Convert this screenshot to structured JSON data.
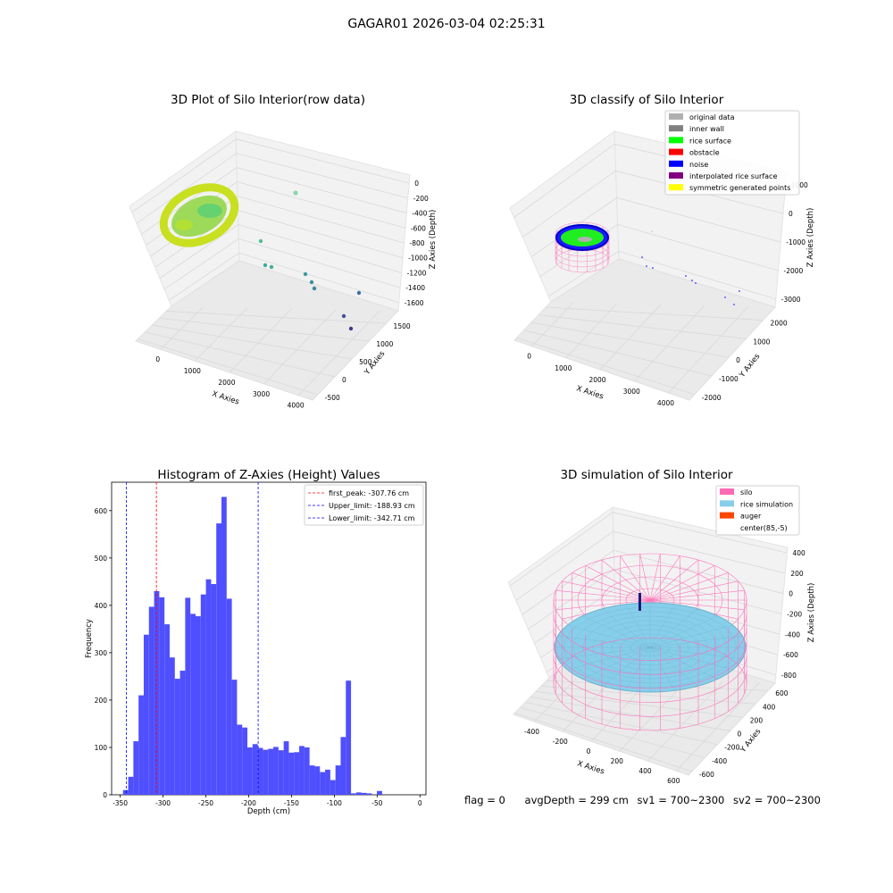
{
  "suptitle": "GAGAR01 2026-03-04 02:25:31",
  "footer": {
    "flag": "flag = 0",
    "avg_depth": "avgDepth = 299 cm",
    "sv1": "sv1 = 700~2300",
    "sv2": "sv2 = 700~2300"
  },
  "colors": {
    "histogram": "#4f4fff",
    "first_peak": "#ff0000",
    "limits": "#0000ff",
    "rice_surface": "#00ff00",
    "inner_wall": "#808080",
    "original_data": "#b0b0b0",
    "obstacle": "#ff0000",
    "noise": "#0000ff",
    "interpolated_rice_surface": "#800080",
    "symmetric_generated_points": "#ffff00",
    "silo": "#ff69b4",
    "rice_simulation": "#87ceeb",
    "auger": "#ff4500"
  },
  "plot1": {
    "title": "3D Plot of Silo Interior(row data)",
    "xlabel": "X Axies",
    "ylabel": "Y Axies",
    "zlabel": "Z Axies (Depth)",
    "xticks": [
      "0",
      "1000",
      "2000",
      "3000",
      "4000"
    ],
    "yticks": [
      "-500",
      "0",
      "500",
      "1000",
      "1500"
    ],
    "zticks": [
      "0",
      "-200",
      "-400",
      "-600",
      "-800",
      "-1000",
      "-1200",
      "-1400",
      "-1600"
    ]
  },
  "plot2": {
    "title": "3D classify of Silo Interior",
    "xlabel": "X Axies",
    "ylabel": "Y Axies",
    "zlabel": "Z Axies (Depth)",
    "xticks": [
      "0",
      "1000",
      "2000",
      "3000",
      "4000"
    ],
    "yticks": [
      "-2000",
      "-1000",
      "0",
      "1000",
      "2000"
    ],
    "zticks": [
      "1000",
      "0",
      "-1000",
      "-2000",
      "-3000"
    ],
    "legend": [
      {
        "label": "original data",
        "color": "#b0b0b0"
      },
      {
        "label": "inner wall",
        "color": "#808080"
      },
      {
        "label": "rice surface",
        "color": "#00ff00"
      },
      {
        "label": "obstacle",
        "color": "#ff0000"
      },
      {
        "label": "noise",
        "color": "#0000ff"
      },
      {
        "label": "interpolated rice surface",
        "color": "#800080"
      },
      {
        "label": "symmetric generated points",
        "color": "#ffff00"
      }
    ]
  },
  "plot4": {
    "title": "3D simulation of Silo Interior",
    "xlabel": "X Axies",
    "ylabel": "Y Axies",
    "zlabel": "Z Axies (Depth)",
    "xticks": [
      "-400",
      "-200",
      "0",
      "200",
      "400",
      "600"
    ],
    "yticks": [
      "-600",
      "-400",
      "-200",
      "0",
      "200",
      "400",
      "600"
    ],
    "zticks": [
      "400",
      "200",
      "0",
      "-200",
      "-400",
      "-600",
      "-800"
    ],
    "legend": [
      {
        "label": "silo",
        "color": "#ff69b4"
      },
      {
        "label": "rice simulation",
        "color": "#87ceeb"
      },
      {
        "label": "auger",
        "color": "#ff4500"
      },
      {
        "label": "center(85,-5)",
        "color": "none"
      }
    ]
  },
  "chart_data": {
    "type": "bar",
    "title": "Histogram of Z-Axies (Height) Values",
    "xlabel": "Depth (cm)",
    "ylabel": "Frequency",
    "xlim": [
      -360,
      7
    ],
    "ylim": [
      0,
      660
    ],
    "xticks": [
      -350,
      -300,
      -250,
      -200,
      -150,
      -100,
      -50,
      0
    ],
    "yticks": [
      0,
      100,
      200,
      300,
      400,
      500,
      600
    ],
    "bin_start": -346.7,
    "bin_width": 6.05,
    "values": [
      10,
      38,
      113,
      210,
      338,
      397,
      430,
      417,
      360,
      290,
      245,
      262,
      416,
      382,
      377,
      423,
      455,
      445,
      573,
      629,
      414,
      243,
      148,
      142,
      100,
      107,
      99,
      95,
      97,
      101,
      94,
      113,
      89,
      90,
      103,
      100,
      62,
      60,
      48,
      53,
      31,
      62,
      122,
      241,
      3,
      5,
      4,
      3,
      0,
      8
    ],
    "vlines": [
      {
        "label": "first_peak: -307.76 cm",
        "x": -307.76,
        "color": "#ff0000"
      },
      {
        "label": "Upper_limit: -188.93 cm",
        "x": -188.93,
        "color": "#0000ff"
      },
      {
        "label": "Lower_limit: -342.71 cm",
        "x": -342.71,
        "color": "#0000ff"
      }
    ],
    "legend_position": "upper right"
  }
}
